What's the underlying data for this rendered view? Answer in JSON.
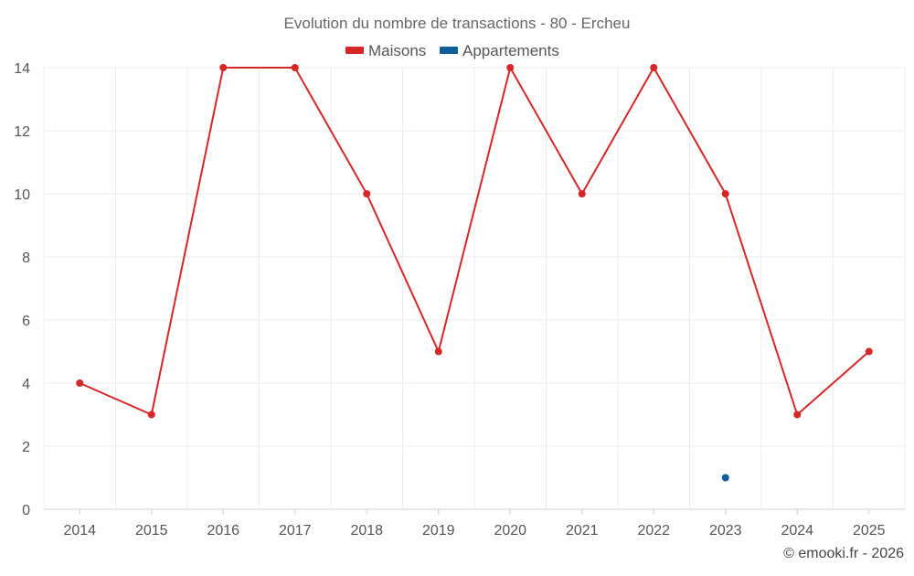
{
  "chart_data": {
    "type": "line",
    "title": "Evolution du nombre de transactions - 80 - Ercheu",
    "xlabel": "",
    "ylabel": "",
    "categories": [
      "2014",
      "2015",
      "2016",
      "2017",
      "2018",
      "2019",
      "2020",
      "2021",
      "2022",
      "2023",
      "2024",
      "2025"
    ],
    "ylim": [
      0,
      14
    ],
    "yticks": [
      0,
      2,
      4,
      6,
      8,
      10,
      12,
      14
    ],
    "grid": true,
    "legend_position": "top-center",
    "series": [
      {
        "name": "Maisons",
        "color": "#d62728",
        "values": [
          4,
          3,
          14,
          14,
          10,
          5,
          14,
          10,
          14,
          10,
          3,
          5
        ]
      },
      {
        "name": "Appartements",
        "color": "#0b5e99",
        "values": [
          null,
          null,
          null,
          null,
          null,
          null,
          null,
          null,
          null,
          1,
          null,
          null
        ]
      }
    ]
  },
  "credit": "© emooki.fr - 2026"
}
